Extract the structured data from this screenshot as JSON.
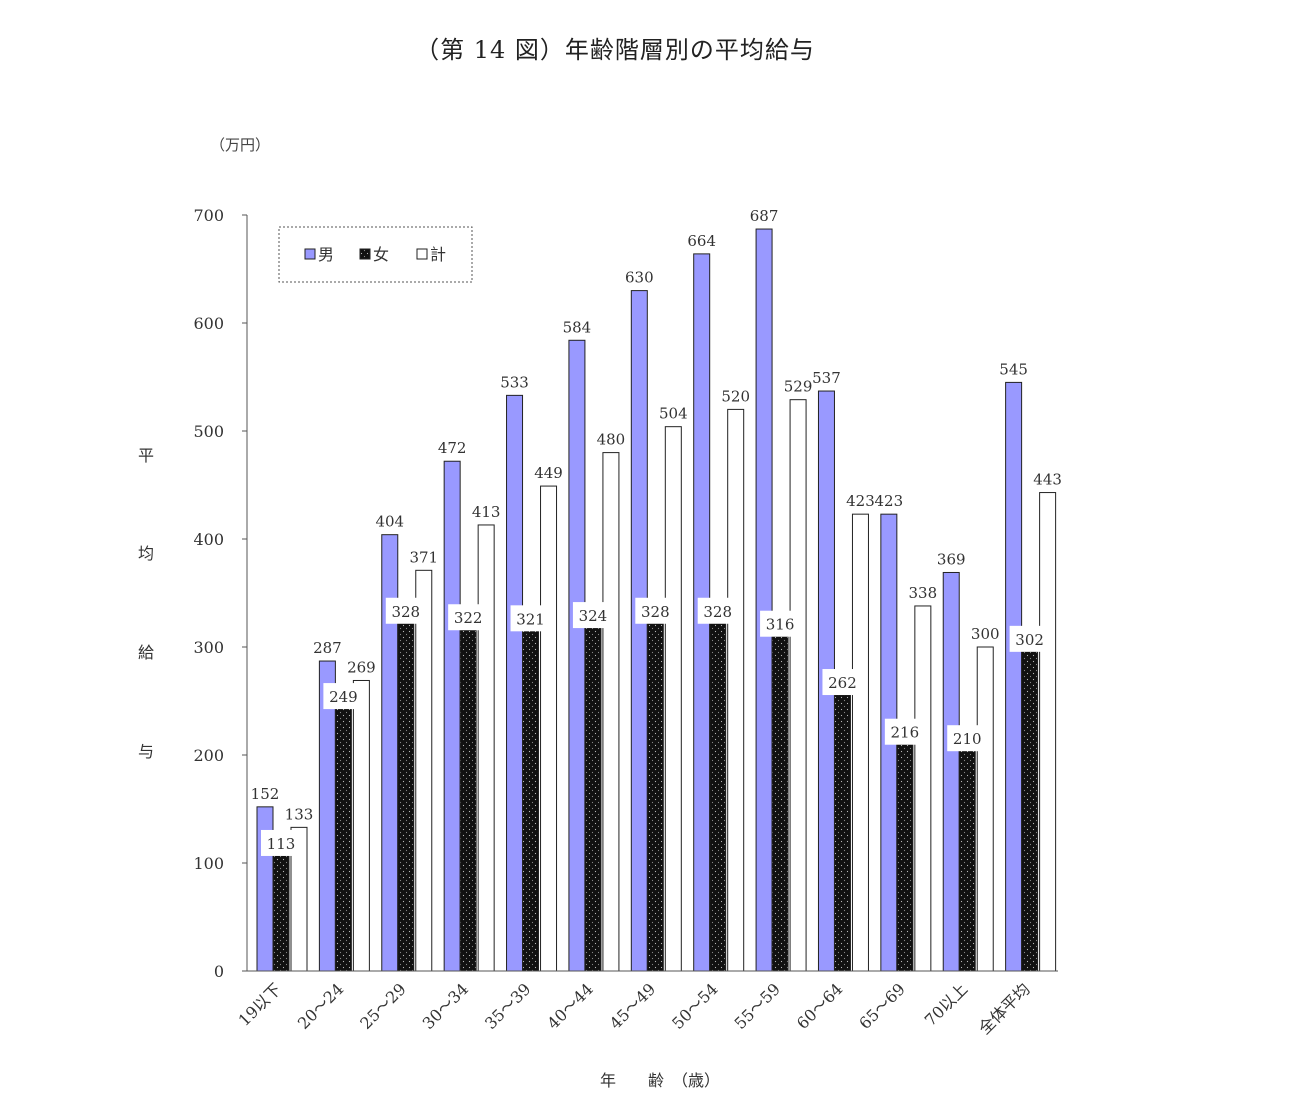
{
  "title": "（第 14 図）年齢階層別の平均給与",
  "chart_data": {
    "type": "bar",
    "title": "（第 14 図）年齢階層別の平均給与",
    "unit_label": "（万円）",
    "ylabel": [
      "平",
      "均",
      "給",
      "与"
    ],
    "xlabel": "年　　齢　（歳）",
    "ylim": [
      0,
      700
    ],
    "yticks": [
      0,
      100,
      200,
      300,
      400,
      500,
      600,
      700
    ],
    "categories": [
      "19以下",
      "20～24",
      "25～29",
      "30～34",
      "35～39",
      "40～44",
      "45～49",
      "50～54",
      "55～59",
      "60～64",
      "65～69",
      "70以上",
      "全体平均"
    ],
    "series": [
      {
        "name": "男",
        "color": "#9999ff",
        "values": [
          152,
          287,
          404,
          472,
          533,
          584,
          630,
          664,
          687,
          537,
          423,
          369,
          545
        ]
      },
      {
        "name": "女",
        "color": "#111111",
        "values": [
          113,
          249,
          328,
          322,
          321,
          324,
          328,
          328,
          316,
          262,
          216,
          210,
          302
        ]
      },
      {
        "name": "計",
        "color": "#ffffff",
        "values": [
          133,
          269,
          371,
          413,
          449,
          480,
          504,
          520,
          529,
          423,
          338,
          300,
          443
        ]
      }
    ],
    "legend_position": "top-left",
    "grid": false
  }
}
